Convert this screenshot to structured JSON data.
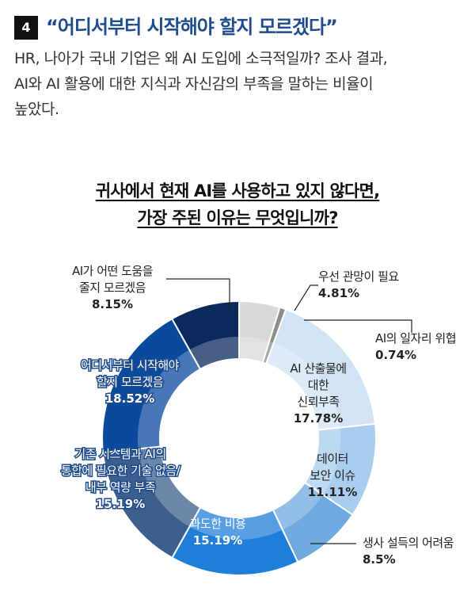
{
  "header": {
    "number": "4",
    "headline": "“어디서부터 시작해야 할지 모르겠다”"
  },
  "intro": {
    "lines": [
      "HR, 나아가 국내 기업은 왜 AI 도입에 소극적일까? 조사 결과,",
      "AI와 AI 활용에 대한 지식과 자신감의 부족을 말하는 비율이",
      "높았다."
    ]
  },
  "chart_data": {
    "type": "pie",
    "donut": true,
    "title_lines": [
      "귀사에서 현재 AI를 사용하고 있지 않다면,",
      "가장 주된 이유는 무엇입니까?"
    ],
    "slices": [
      {
        "label_lines": [
          "우선 관망이 필요"
        ],
        "value": 4.81,
        "value_text": "4.81%",
        "color": "#d9d9d9",
        "label_side": "outside"
      },
      {
        "label_lines": [
          "AI의 일자리 위협"
        ],
        "value": 0.74,
        "value_text": "0.74%",
        "color": "#8c8c8c",
        "label_side": "outside"
      },
      {
        "label_lines": [
          "AI 산출물에",
          "대한",
          "신뢰부족"
        ],
        "value": 17.78,
        "value_text": "17.78%",
        "color": "#d2e3f4",
        "label_side": "inside"
      },
      {
        "label_lines": [
          "데이터",
          "보안 이슈"
        ],
        "value": 11.11,
        "value_text": "11.11%",
        "color": "#a9cdee",
        "label_side": "inside"
      },
      {
        "label_lines": [
          "생사 설득의 어려움"
        ],
        "value": 8.5,
        "value_text": "8.5%",
        "color": "#6ea9df",
        "label_side": "outside"
      },
      {
        "label_lines": [
          "과도한 비용"
        ],
        "value": 15.19,
        "value_text": "15.19%",
        "color": "#1f7fd8",
        "label_side": "inside"
      },
      {
        "label_lines": [
          "기존 시스템과 AI의",
          "통합에 필요한 기술 없음/",
          "내부 역량 부족"
        ],
        "value": 15.19,
        "value_text": "15.19%",
        "color": "#3c5f8d",
        "label_side": "inside"
      },
      {
        "label_lines": [
          "어디서부터 시작해야",
          "할지 모르겠음"
        ],
        "value": 18.52,
        "value_text": "18.52%",
        "color": "#0a4a9e",
        "label_side": "inside"
      },
      {
        "label_lines": [
          "AI가 어떤 도움을",
          "줄지 모르겠음"
        ],
        "value": 8.15,
        "value_text": "8.15%",
        "color": "#0b2a5c",
        "label_side": "outside"
      }
    ]
  }
}
